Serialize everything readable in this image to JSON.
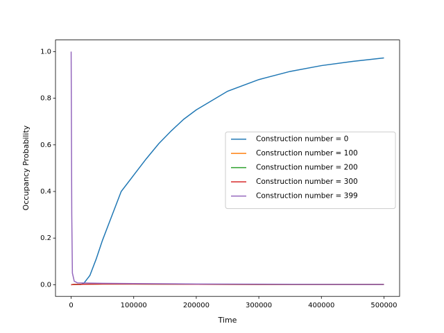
{
  "chart_data": {
    "type": "line",
    "xlabel": "Time",
    "ylabel": "Occupancy Probability",
    "xlim": [
      -25000,
      525000
    ],
    "ylim": [
      -0.05,
      1.05
    ],
    "xticks": [
      0,
      100000,
      200000,
      300000,
      400000,
      500000
    ],
    "yticks": [
      {
        "value": 0,
        "label": "0.0"
      },
      {
        "value": 0.2,
        "label": "0.2"
      },
      {
        "value": 0.4,
        "label": "0.4"
      },
      {
        "value": 0.6,
        "label": "0.6"
      },
      {
        "value": 0.8,
        "label": "0.8"
      },
      {
        "value": 1,
        "label": "1.0"
      }
    ],
    "legend": "center right",
    "series": [
      {
        "name": "Construction number = 0",
        "color": "#1f77b4",
        "x": [
          0,
          10000,
          15000,
          20000,
          30000,
          40000,
          50000,
          60000,
          80000,
          100000,
          120000,
          140000,
          160000,
          180000,
          200000,
          250000,
          300000,
          350000,
          400000,
          450000,
          500000
        ],
        "values": [
          0,
          0.002,
          0.001,
          0.005,
          0.04,
          0.11,
          0.19,
          0.26,
          0.4,
          0.47,
          0.54,
          0.605,
          0.66,
          0.71,
          0.75,
          0.83,
          0.88,
          0.915,
          0.94,
          0.958,
          0.973
        ]
      },
      {
        "name": "Construction number = 100",
        "color": "#ff7f0e",
        "x": [
          0,
          5000,
          20000,
          50000,
          100000,
          200000,
          300000,
          500000
        ],
        "values": [
          0,
          0.001,
          0.002,
          0.003,
          0.003,
          0.002,
          0.001,
          0.001
        ]
      },
      {
        "name": "Construction number = 200",
        "color": "#2ca02c",
        "x": [
          0,
          5000,
          20000,
          50000,
          100000,
          200000,
          300000,
          500000
        ],
        "values": [
          0,
          0.001,
          0.002,
          0.003,
          0.003,
          0.002,
          0.001,
          0.001
        ]
      },
      {
        "name": "Construction number = 300",
        "color": "#d62728",
        "x": [
          0,
          5000,
          20000,
          50000,
          100000,
          200000,
          300000,
          500000
        ],
        "values": [
          0,
          0.001,
          0.002,
          0.003,
          0.003,
          0.002,
          0.001,
          0.001
        ]
      },
      {
        "name": "Construction number = 399",
        "color": "#9467bd",
        "x": [
          0,
          1000,
          2000,
          5000,
          10000,
          50000,
          100000,
          200000,
          500000
        ],
        "values": [
          1,
          0.3,
          0.05,
          0.015,
          0.008,
          0.006,
          0.005,
          0.003,
          0.001
        ]
      }
    ]
  }
}
